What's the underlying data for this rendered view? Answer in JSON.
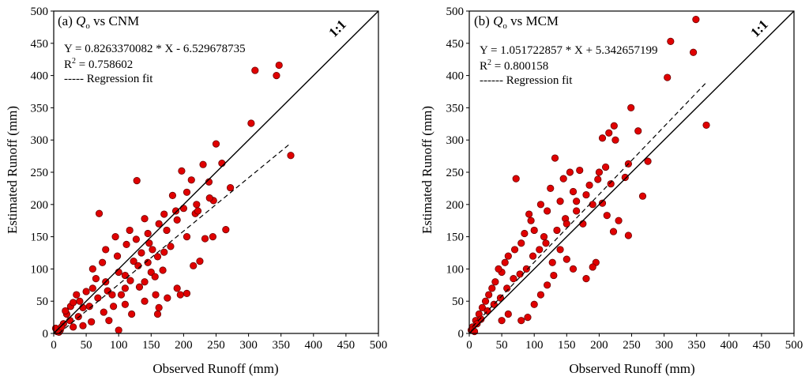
{
  "chart_data": [
    {
      "type": "scatter",
      "panel": "a",
      "title_prefix": "(a) ",
      "title_q": "Q",
      "title_sub": "o",
      "title_suffix": " vs CNM",
      "equation": "Y = 0.8263370082 * X - 6.529678735",
      "r2_prefix": "R",
      "r2_sup": "2",
      "r2_value": " = 0.758602",
      "fit_legend_dashes": "-----",
      "fit_legend_text": " Regression fit",
      "ref_line_label": "1:1",
      "xlabel": "Observed Runoff (mm)",
      "ylabel": "Estimated Runoff (mm)",
      "xlim": [
        0,
        500
      ],
      "ylim": [
        0,
        500
      ],
      "xticks": [
        0,
        50,
        100,
        150,
        200,
        250,
        300,
        350,
        400,
        450,
        500
      ],
      "yticks": [
        0,
        50,
        100,
        150,
        200,
        250,
        300,
        350,
        400,
        450,
        500
      ],
      "regression": {
        "slope": 0.8263370082,
        "intercept": -6.529678735,
        "x_range": [
          8,
          365
        ]
      },
      "marker_color": "#e00000",
      "marker_edge": "#6a0000",
      "points": [
        [
          310,
          408
        ],
        [
          347,
          416
        ],
        [
          343,
          400
        ],
        [
          304,
          326
        ],
        [
          365,
          276
        ],
        [
          250,
          294
        ],
        [
          259,
          264
        ],
        [
          272,
          226
        ],
        [
          265,
          161
        ],
        [
          239,
          235
        ],
        [
          230,
          262
        ],
        [
          212,
          238
        ],
        [
          205,
          219
        ],
        [
          197,
          252
        ],
        [
          183,
          214
        ],
        [
          190,
          176
        ],
        [
          200,
          194
        ],
        [
          218,
          186
        ],
        [
          220,
          200
        ],
        [
          170,
          185
        ],
        [
          162,
          170
        ],
        [
          180,
          135
        ],
        [
          190,
          70
        ],
        [
          195,
          60
        ],
        [
          205,
          62
        ],
        [
          225,
          112
        ],
        [
          246,
          206
        ],
        [
          128,
          237
        ],
        [
          140,
          178
        ],
        [
          117,
          160
        ],
        [
          127,
          146
        ],
        [
          145,
          155
        ],
        [
          160,
          119
        ],
        [
          170,
          126
        ],
        [
          157,
          60
        ],
        [
          140,
          50
        ],
        [
          162,
          40
        ],
        [
          70,
          186
        ],
        [
          98,
          120
        ],
        [
          110,
          90
        ],
        [
          130,
          105
        ],
        [
          140,
          80
        ],
        [
          150,
          95
        ],
        [
          110,
          70
        ],
        [
          80,
          80
        ],
        [
          90,
          60
        ],
        [
          60,
          100
        ],
        [
          75,
          110
        ],
        [
          50,
          65
        ],
        [
          60,
          70
        ],
        [
          40,
          50
        ],
        [
          45,
          40
        ],
        [
          35,
          60
        ],
        [
          20,
          30
        ],
        [
          25,
          20
        ],
        [
          30,
          10
        ],
        [
          15,
          15
        ],
        [
          10,
          5
        ],
        [
          5,
          3
        ],
        [
          3,
          8
        ],
        [
          8,
          2
        ],
        [
          12,
          10
        ],
        [
          100,
          5
        ],
        [
          85,
          20
        ],
        [
          120,
          30
        ],
        [
          110,
          45
        ],
        [
          160,
          30
        ],
        [
          175,
          55
        ],
        [
          135,
          125
        ],
        [
          112,
          138
        ],
        [
          95,
          150
        ],
        [
          80,
          130
        ],
        [
          65,
          85
        ],
        [
          55,
          42
        ],
        [
          100,
          95
        ],
        [
          123,
          112
        ],
        [
          147,
          140
        ],
        [
          156,
          88
        ],
        [
          168,
          98
        ],
        [
          92,
          42
        ],
        [
          77,
          33
        ],
        [
          58,
          18
        ],
        [
          45,
          12
        ],
        [
          38,
          26
        ],
        [
          26,
          42
        ],
        [
          18,
          35
        ],
        [
          30,
          48
        ],
        [
          68,
          55
        ],
        [
          83,
          66
        ],
        [
          104,
          60
        ],
        [
          118,
          82
        ],
        [
          132,
          72
        ],
        [
          145,
          110
        ],
        [
          152,
          130
        ],
        [
          174,
          160
        ],
        [
          188,
          190
        ],
        [
          205,
          150
        ],
        [
          222,
          190
        ],
        [
          240,
          210
        ],
        [
          233,
          147
        ],
        [
          215,
          105
        ],
        [
          245,
          150
        ]
      ]
    },
    {
      "type": "scatter",
      "panel": "b",
      "title_prefix": "(b) ",
      "title_q": "Q",
      "title_sub": "o",
      "title_suffix": " vs MCM",
      "equation": "Y = 1.051722857 * X + 5.342657199",
      "r2_prefix": "R",
      "r2_sup": "2",
      "r2_value": " = 0.800158",
      "fit_legend_dashes": "------",
      "fit_legend_text": " Regression fit",
      "ref_line_label": "1:1",
      "xlabel": "Observed Runoff (mm)",
      "ylabel": "Estimated Runoff (mm)",
      "xlim": [
        0,
        500
      ],
      "ylim": [
        0,
        500
      ],
      "xticks": [
        0,
        50,
        100,
        150,
        200,
        250,
        300,
        350,
        400,
        450,
        500
      ],
      "yticks": [
        0,
        50,
        100,
        150,
        200,
        250,
        300,
        350,
        400,
        450,
        500
      ],
      "regression": {
        "slope": 1.051722857,
        "intercept": 5.342657199,
        "x_range": [
          5,
          365
        ]
      },
      "marker_color": "#e00000",
      "marker_edge": "#6a0000",
      "points": [
        [
          349,
          487
        ],
        [
          310,
          453
        ],
        [
          345,
          436
        ],
        [
          305,
          397
        ],
        [
          365,
          323
        ],
        [
          249,
          350
        ],
        [
          260,
          314
        ],
        [
          275,
          267
        ],
        [
          267,
          213
        ],
        [
          240,
          242
        ],
        [
          245,
          263
        ],
        [
          223,
          322
        ],
        [
          215,
          311
        ],
        [
          225,
          300
        ],
        [
          205,
          303
        ],
        [
          210,
          258
        ],
        [
          198,
          239
        ],
        [
          218,
          232
        ],
        [
          190,
          200
        ],
        [
          180,
          215
        ],
        [
          170,
          253
        ],
        [
          155,
          250
        ],
        [
          132,
          272
        ],
        [
          72,
          240
        ],
        [
          110,
          200
        ],
        [
          125,
          225
        ],
        [
          145,
          240
        ],
        [
          160,
          220
        ],
        [
          175,
          170
        ],
        [
          195,
          110
        ],
        [
          190,
          103
        ],
        [
          205,
          202
        ],
        [
          212,
          183
        ],
        [
          230,
          175
        ],
        [
          222,
          158
        ],
        [
          245,
          152
        ],
        [
          180,
          85
        ],
        [
          160,
          100
        ],
        [
          150,
          115
        ],
        [
          140,
          130
        ],
        [
          128,
          110
        ],
        [
          115,
          150
        ],
        [
          100,
          160
        ],
        [
          92,
          185
        ],
        [
          85,
          155
        ],
        [
          80,
          140
        ],
        [
          70,
          130
        ],
        [
          60,
          120
        ],
        [
          55,
          110
        ],
        [
          50,
          95
        ],
        [
          45,
          100
        ],
        [
          40,
          80
        ],
        [
          35,
          70
        ],
        [
          30,
          60
        ],
        [
          25,
          50
        ],
        [
          20,
          40
        ],
        [
          15,
          30
        ],
        [
          10,
          20
        ],
        [
          5,
          10
        ],
        [
          3,
          5
        ],
        [
          8,
          3
        ],
        [
          12,
          15
        ],
        [
          18,
          22
        ],
        [
          28,
          35
        ],
        [
          38,
          45
        ],
        [
          48,
          55
        ],
        [
          58,
          70
        ],
        [
          68,
          85
        ],
        [
          78,
          92
        ],
        [
          88,
          100
        ],
        [
          98,
          120
        ],
        [
          108,
          130
        ],
        [
          118,
          140
        ],
        [
          135,
          160
        ],
        [
          148,
          178
        ],
        [
          165,
          190
        ],
        [
          80,
          20
        ],
        [
          90,
          25
        ],
        [
          110,
          60
        ],
        [
          120,
          75
        ],
        [
          60,
          30
        ],
        [
          50,
          20
        ],
        [
          100,
          45
        ],
        [
          130,
          90
        ],
        [
          150,
          170
        ],
        [
          165,
          205
        ],
        [
          185,
          230
        ],
        [
          200,
          250
        ],
        [
          140,
          205
        ],
        [
          120,
          190
        ],
        [
          95,
          175
        ]
      ]
    }
  ]
}
